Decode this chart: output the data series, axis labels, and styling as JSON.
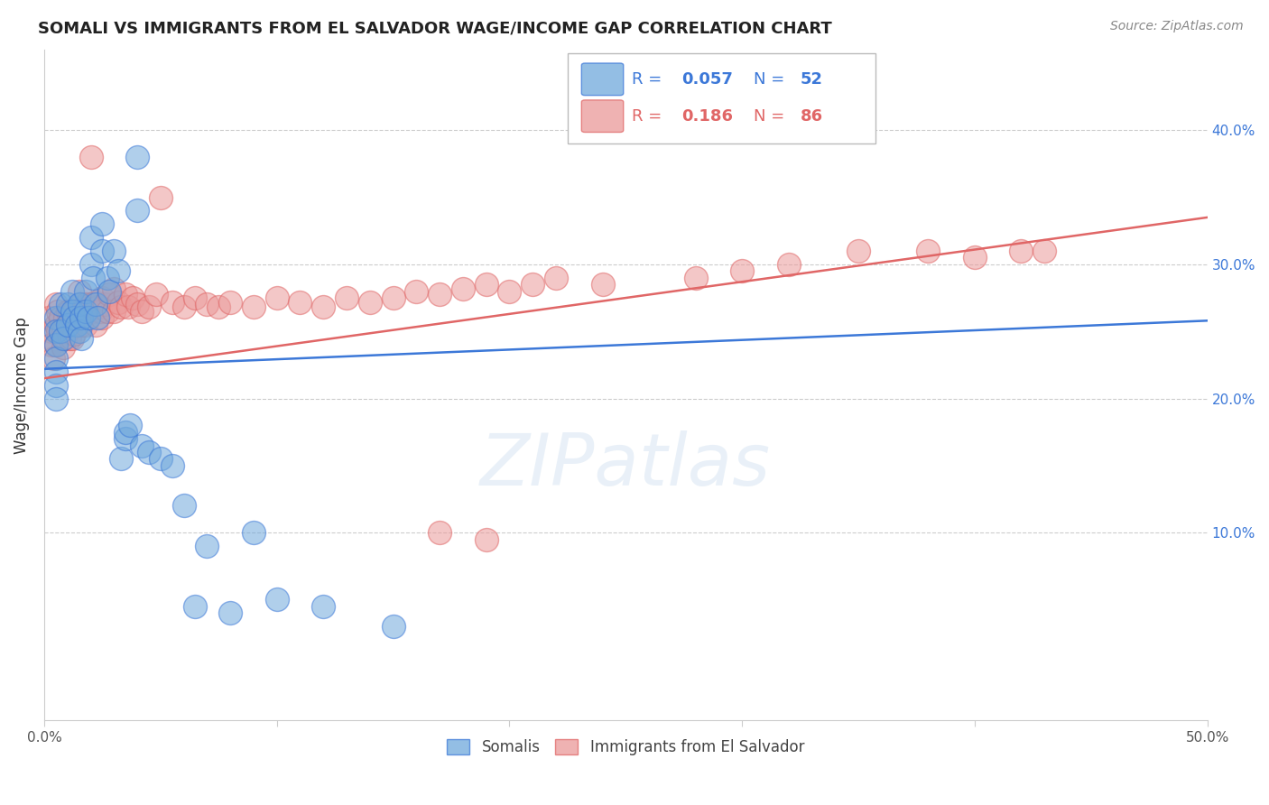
{
  "title": "SOMALI VS IMMIGRANTS FROM EL SALVADOR WAGE/INCOME GAP CORRELATION CHART",
  "source": "Source: ZipAtlas.com",
  "ylabel": "Wage/Income Gap",
  "xlim": [
    0.0,
    0.5
  ],
  "ylim": [
    -0.04,
    0.46
  ],
  "xticks": [
    0.0,
    0.1,
    0.2,
    0.3,
    0.4,
    0.5
  ],
  "xticklabels": [
    "0.0%",
    "",
    "",
    "",
    "",
    "50.0%"
  ],
  "yticks": [
    0.1,
    0.2,
    0.3,
    0.4
  ],
  "yticklabels_right": [
    "10.0%",
    "20.0%",
    "30.0%",
    "40.0%"
  ],
  "blue_R": 0.057,
  "blue_N": 52,
  "pink_R": 0.186,
  "pink_N": 86,
  "blue_color": "#6fa8dc",
  "pink_color": "#ea9999",
  "blue_line_color": "#3c78d8",
  "pink_line_color": "#e06666",
  "watermark": "ZIPatlas",
  "blue_line_y0": 0.222,
  "blue_line_y1": 0.258,
  "pink_line_y0": 0.215,
  "pink_line_y1": 0.335,
  "somali_x": [
    0.005,
    0.005,
    0.005,
    0.005,
    0.005,
    0.005,
    0.005,
    0.007,
    0.007,
    0.008,
    0.01,
    0.01,
    0.012,
    0.012,
    0.013,
    0.014,
    0.015,
    0.015,
    0.016,
    0.016,
    0.018,
    0.018,
    0.019,
    0.02,
    0.02,
    0.021,
    0.022,
    0.023,
    0.025,
    0.025,
    0.027,
    0.028,
    0.03,
    0.032,
    0.033,
    0.035,
    0.035,
    0.037,
    0.04,
    0.04,
    0.042,
    0.045,
    0.05,
    0.055,
    0.06,
    0.065,
    0.07,
    0.08,
    0.09,
    0.1,
    0.12,
    0.15
  ],
  "somali_y": [
    0.26,
    0.25,
    0.24,
    0.23,
    0.22,
    0.21,
    0.2,
    0.27,
    0.25,
    0.245,
    0.27,
    0.255,
    0.28,
    0.265,
    0.26,
    0.255,
    0.27,
    0.25,
    0.26,
    0.245,
    0.28,
    0.265,
    0.26,
    0.32,
    0.3,
    0.29,
    0.27,
    0.26,
    0.33,
    0.31,
    0.29,
    0.28,
    0.31,
    0.295,
    0.155,
    0.17,
    0.175,
    0.18,
    0.38,
    0.34,
    0.165,
    0.16,
    0.155,
    0.15,
    0.12,
    0.045,
    0.09,
    0.04,
    0.1,
    0.05,
    0.045,
    0.03
  ],
  "salvador_x": [
    0.002,
    0.003,
    0.003,
    0.004,
    0.005,
    0.005,
    0.005,
    0.006,
    0.006,
    0.007,
    0.008,
    0.008,
    0.009,
    0.009,
    0.01,
    0.01,
    0.011,
    0.011,
    0.012,
    0.012,
    0.013,
    0.013,
    0.014,
    0.015,
    0.015,
    0.016,
    0.016,
    0.017,
    0.018,
    0.018,
    0.019,
    0.02,
    0.02,
    0.021,
    0.022,
    0.022,
    0.023,
    0.024,
    0.025,
    0.025,
    0.026,
    0.027,
    0.028,
    0.03,
    0.03,
    0.032,
    0.033,
    0.035,
    0.036,
    0.038,
    0.04,
    0.042,
    0.045,
    0.048,
    0.05,
    0.055,
    0.06,
    0.065,
    0.07,
    0.075,
    0.08,
    0.09,
    0.1,
    0.11,
    0.12,
    0.13,
    0.14,
    0.15,
    0.16,
    0.17,
    0.18,
    0.19,
    0.2,
    0.21,
    0.22,
    0.24,
    0.28,
    0.3,
    0.32,
    0.35,
    0.38,
    0.4,
    0.42,
    0.43,
    0.17,
    0.19
  ],
  "salvador_y": [
    0.26,
    0.25,
    0.24,
    0.23,
    0.27,
    0.255,
    0.24,
    0.265,
    0.25,
    0.26,
    0.25,
    0.238,
    0.26,
    0.245,
    0.265,
    0.25,
    0.265,
    0.245,
    0.26,
    0.245,
    0.265,
    0.248,
    0.26,
    0.28,
    0.262,
    0.27,
    0.255,
    0.268,
    0.27,
    0.255,
    0.265,
    0.38,
    0.27,
    0.265,
    0.272,
    0.255,
    0.268,
    0.265,
    0.275,
    0.26,
    0.27,
    0.265,
    0.278,
    0.282,
    0.265,
    0.272,
    0.268,
    0.278,
    0.268,
    0.275,
    0.27,
    0.265,
    0.268,
    0.278,
    0.35,
    0.272,
    0.268,
    0.275,
    0.27,
    0.268,
    0.272,
    0.268,
    0.275,
    0.272,
    0.268,
    0.275,
    0.272,
    0.275,
    0.28,
    0.278,
    0.282,
    0.285,
    0.28,
    0.285,
    0.29,
    0.285,
    0.29,
    0.295,
    0.3,
    0.31,
    0.31,
    0.305,
    0.31,
    0.31,
    0.1,
    0.095
  ]
}
